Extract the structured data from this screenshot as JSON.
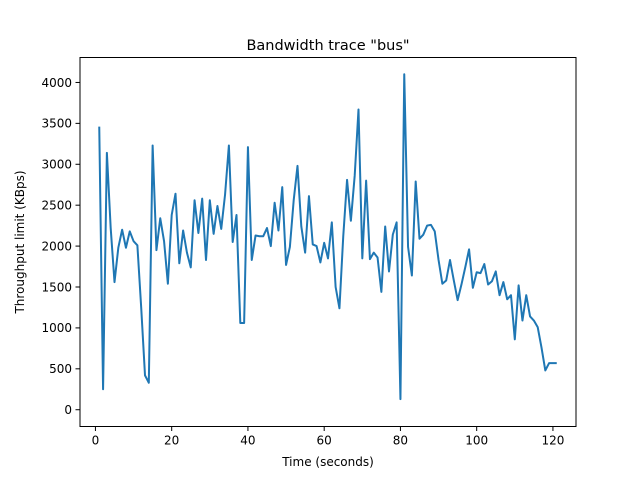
{
  "chart_data": {
    "type": "line",
    "title": "Bandwidth trace \"bus\"",
    "xlabel": "Time (seconds)",
    "ylabel": "Throughput limit (KBps)",
    "xlim": [
      -4.05,
      126.05
    ],
    "ylim": [
      -205,
      4305
    ],
    "xticks": [
      0,
      20,
      40,
      60,
      80,
      100,
      120
    ],
    "yticks": [
      0,
      500,
      1000,
      1500,
      2000,
      2500,
      3000,
      3500,
      4000
    ],
    "grid": false,
    "series": [
      {
        "color": "#1f77b4",
        "x": [
          1,
          2,
          3,
          4,
          5,
          6,
          7,
          8,
          9,
          10,
          11,
          12,
          13,
          14,
          15,
          16,
          17,
          18,
          19,
          20,
          21,
          22,
          23,
          24,
          25,
          26,
          27,
          28,
          29,
          30,
          31,
          32,
          33,
          34,
          35,
          36,
          37,
          38,
          39,
          40,
          41,
          42,
          43,
          44,
          45,
          46,
          47,
          48,
          49,
          50,
          51,
          52,
          53,
          54,
          55,
          56,
          57,
          58,
          59,
          60,
          61,
          62,
          63,
          64,
          65,
          66,
          67,
          68,
          69,
          70,
          71,
          72,
          73,
          74,
          75,
          76,
          77,
          78,
          79,
          80,
          81,
          82,
          83,
          84,
          85,
          86,
          87,
          88,
          89,
          90,
          91,
          92,
          93,
          94,
          95,
          96,
          97,
          98,
          99,
          100,
          101,
          102,
          103,
          104,
          105,
          106,
          107,
          108,
          109,
          110,
          111,
          112,
          113,
          114,
          115,
          116,
          117,
          118,
          119,
          120,
          121
        ],
        "y": [
          3460,
          250,
          3140,
          2220,
          1560,
          1980,
          2200,
          1980,
          2180,
          2060,
          2010,
          1250,
          420,
          330,
          3230,
          1950,
          2340,
          2060,
          1540,
          2380,
          2640,
          1790,
          2190,
          1920,
          1740,
          2560,
          2160,
          2580,
          1830,
          2560,
          2150,
          2490,
          2210,
          2630,
          3230,
          2050,
          2380,
          1060,
          1060,
          3210,
          1830,
          2130,
          2120,
          2120,
          2220,
          2000,
          2530,
          2190,
          2720,
          1770,
          1990,
          2560,
          2980,
          2240,
          1920,
          2610,
          2020,
          2000,
          1800,
          2040,
          1850,
          2290,
          1500,
          1240,
          2120,
          2810,
          2310,
          2860,
          3670,
          1850,
          2800,
          1840,
          1920,
          1860,
          1440,
          2240,
          1690,
          2140,
          2290,
          130,
          4100,
          1990,
          1640,
          2790,
          2090,
          2140,
          2250,
          2260,
          2180,
          1830,
          1540,
          1580,
          1830,
          1580,
          1340,
          1530,
          1740,
          1960,
          1490,
          1680,
          1670,
          1780,
          1530,
          1570,
          1690,
          1400,
          1560,
          1350,
          1400,
          860,
          1520,
          1090,
          1400,
          1140,
          1090,
          1010,
          760,
          480,
          570,
          570,
          570
        ]
      }
    ]
  }
}
